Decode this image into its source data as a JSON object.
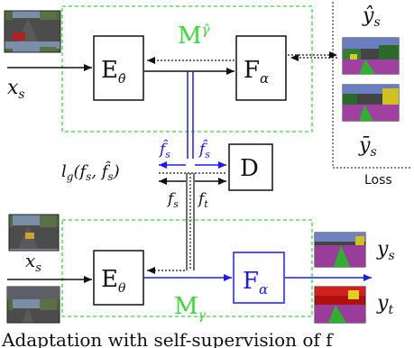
{
  "top_module": {
    "label": "M",
    "label_sub": "γ̂",
    "encoder": {
      "label": "E",
      "sub": "θ̂"
    },
    "classifier": {
      "label": "F",
      "sub": "α"
    }
  },
  "bottom_module": {
    "label": "M",
    "label_sub": "γ",
    "encoder": {
      "label": "E",
      "sub": "θ"
    },
    "classifier": {
      "label": "F",
      "sub": "α"
    }
  },
  "discriminator": {
    "label": "D"
  },
  "loss_box": {
    "caption": "Loss",
    "y_hat_label": "ŷ",
    "y_hat_sub": "s",
    "y_bar_label": "ȳ",
    "y_bar_sub": "s"
  },
  "inputs": {
    "top": {
      "label": "x",
      "sub": "s"
    },
    "bottom_source": {
      "label": "x",
      "sub": "s"
    },
    "bottom_target": {
      "label": "x",
      "sub": "t"
    }
  },
  "outputs": {
    "source": {
      "label": "y",
      "sub": "s"
    },
    "target": {
      "label": "y",
      "sub": "t"
    }
  },
  "features": {
    "fs_hat_left": "f̂",
    "fs_hat_left_sub": "s",
    "fs_hat_right": "f̂",
    "fs_hat_right_sub": "s",
    "fs": "f",
    "fs_sub": "s",
    "ft": "f",
    "ft_sub": "t"
  },
  "loss_term": {
    "text": "l",
    "sub": "g",
    "args": "(f",
    "args_sub1": "s",
    "args_mid": ", f̂",
    "args_sub2": "s",
    "args_end": ")"
  },
  "caption_fragment": "Adaptation with self-supervision of f",
  "colors": {
    "green": "#33dd33",
    "blue": "#1a1aff",
    "black": "#111111"
  }
}
